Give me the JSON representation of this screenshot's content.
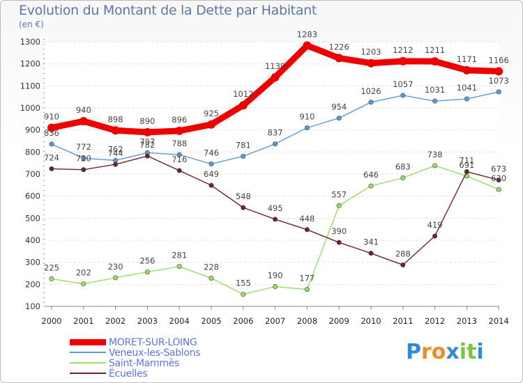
{
  "chart_data": {
    "type": "line",
    "title": "Evolution du Montant de la Dette par Habitant",
    "subtitle": "(en €)",
    "categories": [
      "2000",
      "2001",
      "2002",
      "2003",
      "2004",
      "2005",
      "2006",
      "2007",
      "2008",
      "2009",
      "2010",
      "2011",
      "2012",
      "2013",
      "2014"
    ],
    "ylim": [
      100,
      1300
    ],
    "yticks": [
      100,
      200,
      300,
      400,
      500,
      600,
      700,
      800,
      900,
      1000,
      1100,
      1200,
      1300
    ],
    "grid": "horizontal",
    "legend_position": "bottom-left",
    "series": [
      {
        "name": "MORET-SUR-LOING",
        "color": "#ee0000",
        "values": [
          910,
          940,
          898,
          890,
          896,
          925,
          1012,
          1139,
          1283,
          1226,
          1203,
          1212,
          1211,
          1171,
          1166
        ]
      },
      {
        "name": "Veneux-les-Sablons",
        "color": "#5b9bd0",
        "values": [
          836,
          772,
          762,
          797,
          788,
          746,
          781,
          837,
          910,
          954,
          1026,
          1057,
          1031,
          1041,
          1073
        ]
      },
      {
        "name": "Saint-Mammès",
        "color": "#99dd66",
        "values": [
          225,
          202,
          230,
          256,
          281,
          228,
          155,
          190,
          177,
          557,
          646,
          683,
          738,
          691,
          630
        ]
      },
      {
        "name": "Écuelles",
        "color": "#6b2228",
        "values": [
          724,
          720,
          744,
          782,
          716,
          649,
          548,
          495,
          448,
          390,
          341,
          288,
          419,
          711,
          673
        ]
      }
    ]
  },
  "logo": {
    "letters": [
      "P",
      "r",
      "o",
      "x",
      "i",
      "t",
      "i"
    ],
    "colors": [
      "#2e8bd8",
      "#f28c1e",
      "#f28c1e",
      "#2e8bd8",
      "#7cc243",
      "#7cc243",
      "#2e8bd8"
    ]
  }
}
